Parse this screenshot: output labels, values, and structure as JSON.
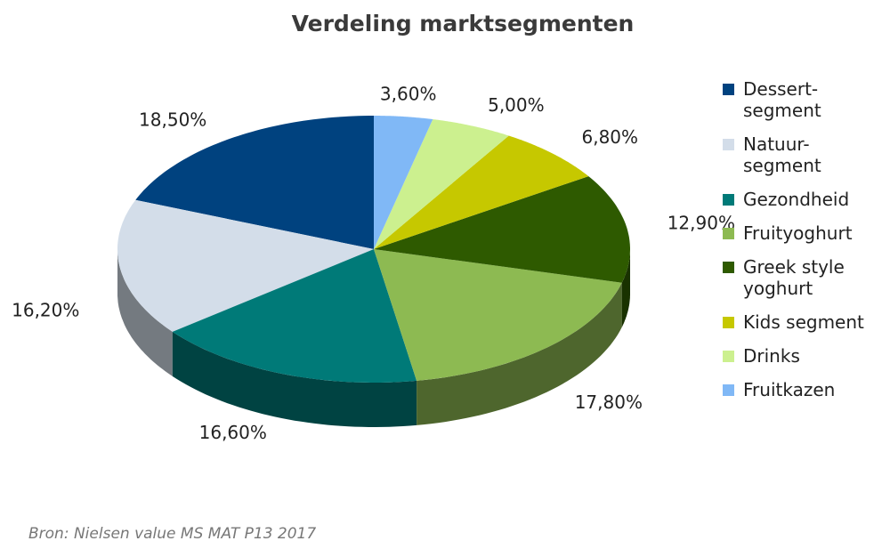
{
  "chart_data": {
    "type": "pie",
    "title": "Verdeling marktsegmenten",
    "categories": [
      "Dessert-segment",
      "Natuur-segment",
      "Gezondheid",
      "Fruityoghurt",
      "Greek style yoghurt",
      "Kids segment",
      "Drinks",
      "Fruitkazen"
    ],
    "values": [
      18.5,
      16.2,
      16.6,
      17.8,
      12.9,
      6.8,
      5.0,
      3.6
    ],
    "value_labels": [
      "18,50%",
      "16,20%",
      "16,60%",
      "17,80%",
      "12,90%",
      "6,80%",
      "5,00%",
      "3,60%"
    ],
    "colors": [
      "#00427f",
      "#d3dde9",
      "#007a78",
      "#8dba52",
      "#2e5a00",
      "#c6c800",
      "#ccf08f",
      "#80b8f6"
    ],
    "source": "Bron: Nielsen value MS MAT P13 2017"
  }
}
